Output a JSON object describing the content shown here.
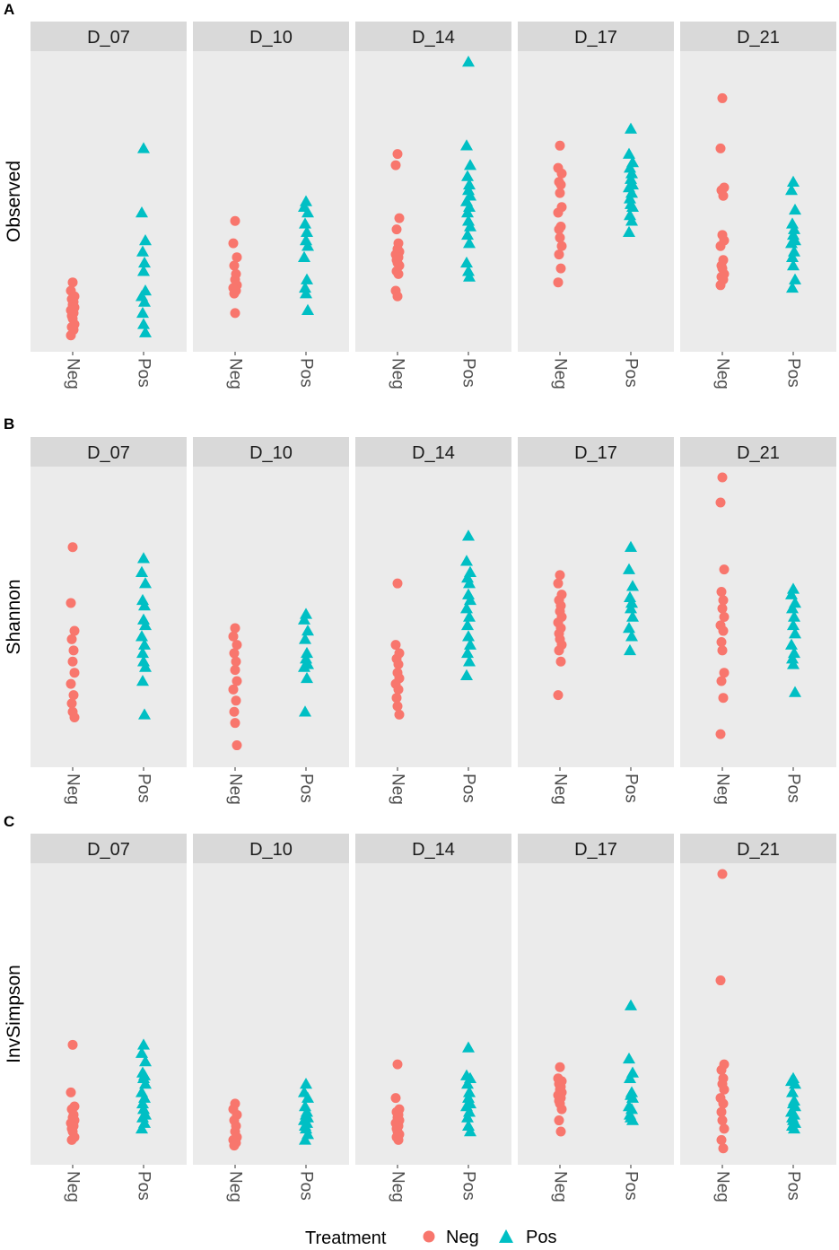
{
  "colors": {
    "neg": "#F8766D",
    "pos": "#00BFC4",
    "panel_bg": "#EBEBEB",
    "strip_bg": "#D9D9D9"
  },
  "legend": {
    "title": "Treatment",
    "items": [
      "Neg",
      "Pos"
    ]
  },
  "chart_data": [
    {
      "type": "scatter",
      "panel_label": "A",
      "ylabel": "Observed",
      "facets": [
        "D_07",
        "D_10",
        "D_14",
        "D_17",
        "D_21"
      ],
      "categories": [
        "Neg",
        "Pos"
      ],
      "ylim": [
        0,
        100
      ],
      "series": [
        {
          "name": "Neg",
          "values": [
            [
              21,
              18,
              16,
              15,
              14,
              13,
              12,
              11,
              10,
              9,
              8,
              6,
              5,
              4,
              2
            ],
            [
              43,
              35,
              30,
              27,
              24,
              22,
              20,
              19,
              18,
              17,
              10
            ],
            [
              67,
              63,
              44,
              40,
              35,
              33,
              32,
              31,
              30,
              29,
              28,
              27,
              25,
              24,
              18,
              16
            ],
            [
              70,
              62,
              60,
              57,
              56,
              53,
              48,
              46,
              41,
              40,
              37,
              34,
              31,
              26,
              21
            ],
            [
              87,
              69,
              55,
              54,
              52,
              38,
              36,
              34,
              29,
              27,
              26,
              24,
              23,
              22,
              20
            ]
          ]
        },
        {
          "name": "Pos",
          "values": [
            [
              69,
              46,
              36,
              32,
              28,
              25,
              18,
              16,
              14,
              10,
              6,
              3
            ],
            [
              50,
              48,
              46,
              42,
              39,
              36,
              34,
              30,
              22,
              19,
              17,
              11
            ],
            [
              100,
              70,
              63,
              59,
              56,
              54,
              52,
              50,
              48,
              46,
              43,
              41,
              38,
              35,
              28,
              25,
              23
            ],
            [
              76,
              67,
              64,
              62,
              60,
              58,
              56,
              55,
              53,
              51,
              49,
              48,
              45,
              43,
              39
            ],
            [
              57,
              54,
              47,
              42,
              40,
              38,
              36,
              35,
              32,
              30,
              27,
              22,
              19
            ]
          ]
        }
      ]
    },
    {
      "type": "scatter",
      "panel_label": "B",
      "ylabel": "Shannon",
      "facets": [
        "D_07",
        "D_10",
        "D_14",
        "D_17",
        "D_21"
      ],
      "categories": [
        "Neg",
        "Pos"
      ],
      "ylim": [
        0,
        100
      ],
      "series": [
        {
          "name": "Neg",
          "values": [
            [
              75,
              55,
              45,
              42,
              38,
              34,
              30,
              26,
              22,
              19,
              16,
              14
            ],
            [
              46,
              43,
              40,
              37,
              34,
              31,
              27,
              24,
              20,
              16,
              12,
              4
            ],
            [
              62,
              40,
              37,
              35,
              33,
              30,
              28,
              26,
              24,
              21,
              18,
              15
            ],
            [
              65,
              62,
              58,
              56,
              54,
              52,
              50,
              48,
              46,
              44,
              42,
              40,
              38,
              34,
              22
            ],
            [
              100,
              91,
              67,
              59,
              56,
              53,
              50,
              47,
              45,
              41,
              38,
              30,
              27,
              21,
              8
            ]
          ]
        },
        {
          "name": "Pos",
          "values": [
            [
              71,
              66,
              62,
              56,
              54,
              49,
              47,
              43,
              40,
              37,
              34,
              32,
              27,
              15
            ],
            [
              51,
              49,
              45,
              42,
              37,
              35,
              33,
              32,
              28,
              16
            ],
            [
              79,
              70,
              66,
              64,
              62,
              58,
              56,
              53,
              50,
              47,
              43,
              40,
              37,
              34,
              29
            ],
            [
              75,
              67,
              61,
              57,
              55,
              53,
              50,
              46,
              43,
              38
            ],
            [
              60,
              58,
              55,
              53,
              50,
              47,
              44,
              40,
              37,
              35,
              33,
              23
            ]
          ]
        }
      ]
    },
    {
      "type": "scatter",
      "panel_label": "C",
      "ylabel": "InvSimpson",
      "facets": [
        "D_07",
        "D_10",
        "D_14",
        "D_17",
        "D_21"
      ],
      "categories": [
        "Neg",
        "Pos"
      ],
      "ylim": [
        0,
        100
      ],
      "series": [
        {
          "name": "Neg",
          "values": [
            [
              39,
              22,
              17,
              16,
              14,
              13,
              12,
              11,
              10,
              9,
              8,
              6,
              5
            ],
            [
              18,
              16,
              14,
              12,
              10,
              8,
              6,
              5,
              4,
              3
            ],
            [
              32,
              20,
              16,
              15,
              14,
              13,
              12,
              11,
              10,
              9,
              8,
              7,
              6,
              5
            ],
            [
              31,
              27,
              26,
              25,
              24,
              23,
              22,
              21,
              20,
              19,
              18,
              16,
              12,
              8
            ],
            [
              100,
              62,
              32,
              30,
              27,
              25,
              23,
              20,
              18,
              15,
              12,
              9,
              5,
              2
            ]
          ]
        },
        {
          "name": "Pos",
          "values": [
            [
              39,
              36,
              33,
              29,
              28,
              27,
              25,
              22,
              20,
              18,
              16,
              14,
              13,
              11,
              9
            ],
            [
              25,
              22,
              20,
              17,
              15,
              14,
              13,
              12,
              11,
              10,
              9,
              7,
              5
            ],
            [
              38,
              28,
              27,
              25,
              22,
              20,
              18,
              17,
              15,
              13,
              10,
              8
            ],
            [
              53,
              34,
              29,
              27,
              22,
              21,
              20,
              17,
              16,
              14,
              13,
              12
            ],
            [
              27,
              26,
              25,
              22,
              19,
              18,
              17,
              15,
              14,
              13,
              12,
              11,
              10,
              9
            ]
          ]
        }
      ]
    }
  ]
}
